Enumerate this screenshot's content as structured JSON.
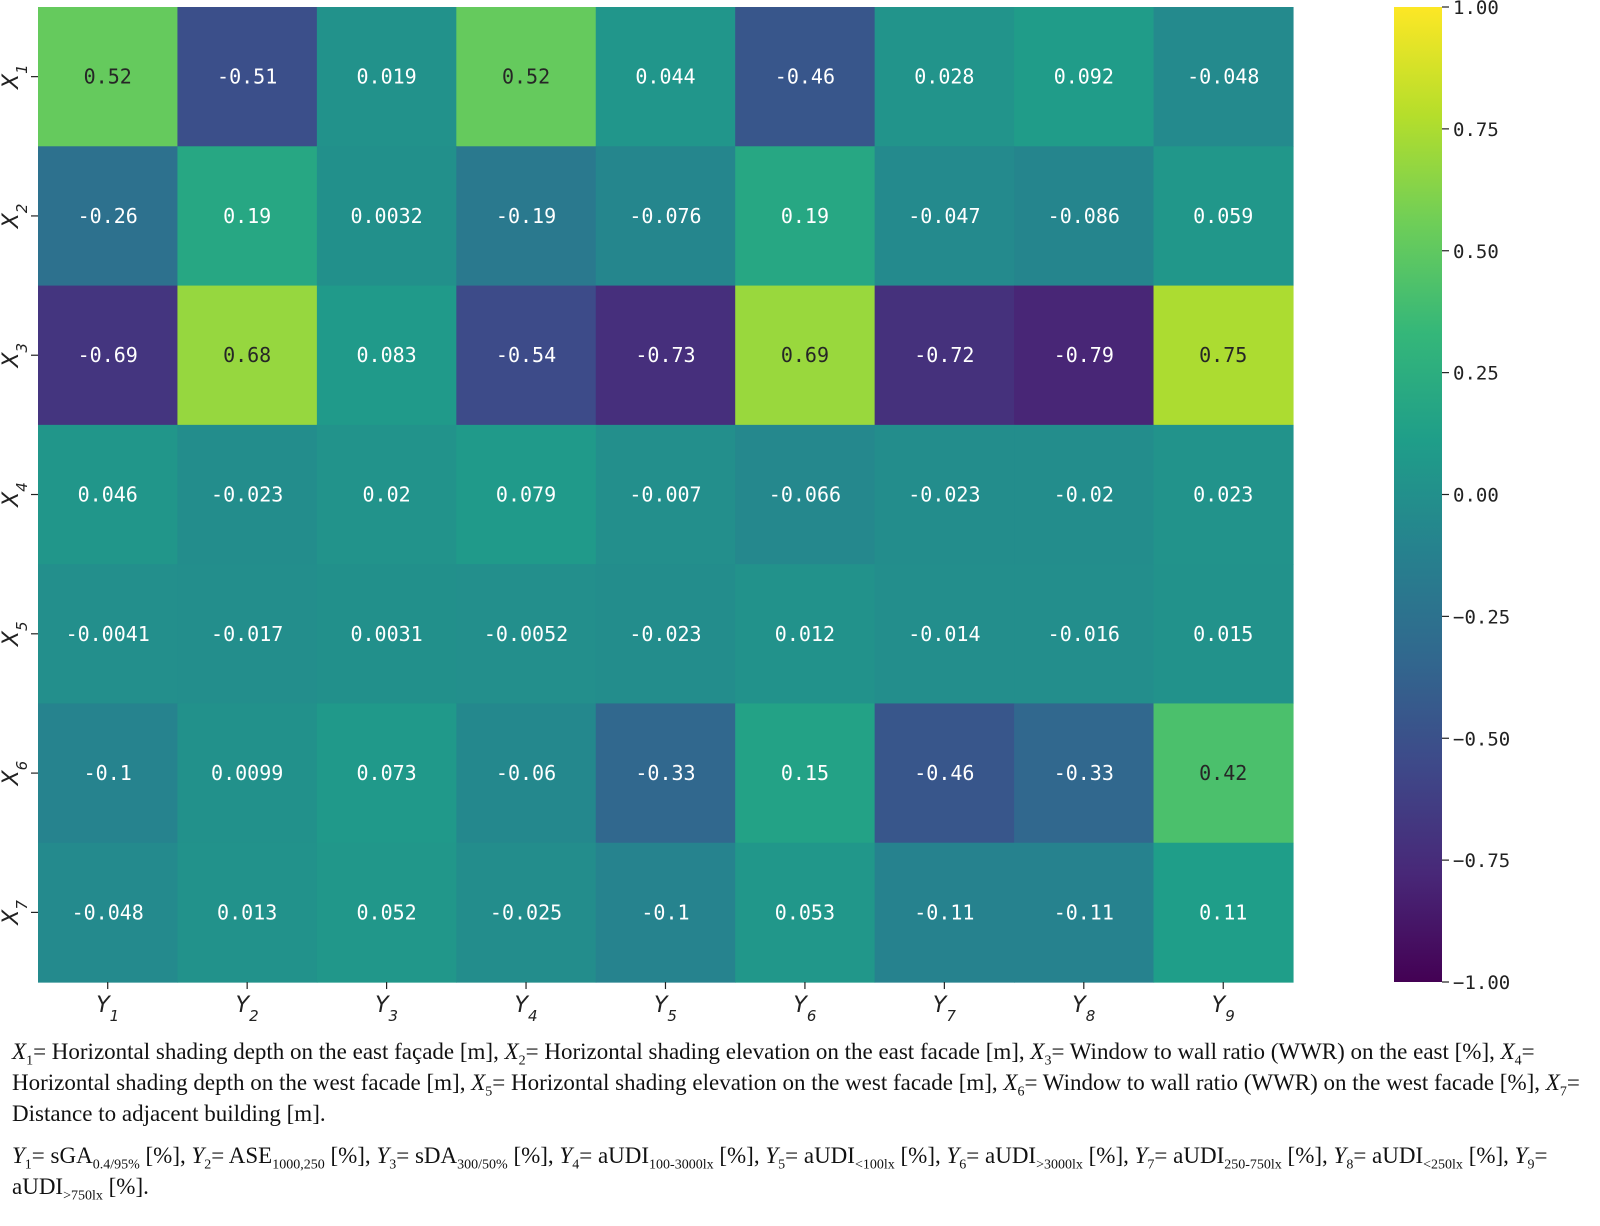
{
  "chart_data": {
    "type": "heatmap",
    "rows": [
      {
        "var": "X",
        "sub": "1"
      },
      {
        "var": "X",
        "sub": "2"
      },
      {
        "var": "X",
        "sub": "3"
      },
      {
        "var": "X",
        "sub": "4"
      },
      {
        "var": "X",
        "sub": "5"
      },
      {
        "var": "X",
        "sub": "6"
      },
      {
        "var": "X",
        "sub": "7"
      }
    ],
    "columns": [
      {
        "var": "Y",
        "sub": "1"
      },
      {
        "var": "Y",
        "sub": "2"
      },
      {
        "var": "Y",
        "sub": "3"
      },
      {
        "var": "Y",
        "sub": "4"
      },
      {
        "var": "Y",
        "sub": "5"
      },
      {
        "var": "Y",
        "sub": "6"
      },
      {
        "var": "Y",
        "sub": "7"
      },
      {
        "var": "Y",
        "sub": "8"
      },
      {
        "var": "Y",
        "sub": "9"
      }
    ],
    "values": [
      [
        0.52,
        -0.51,
        0.019,
        0.52,
        0.044,
        -0.46,
        0.028,
        0.092,
        -0.048
      ],
      [
        -0.26,
        0.19,
        0.0032,
        -0.19,
        -0.076,
        0.19,
        -0.047,
        -0.086,
        0.059
      ],
      [
        -0.69,
        0.68,
        0.083,
        -0.54,
        -0.73,
        0.69,
        -0.72,
        -0.79,
        0.75
      ],
      [
        0.046,
        -0.023,
        0.02,
        0.079,
        -0.007,
        -0.066,
        -0.023,
        -0.02,
        0.023
      ],
      [
        -0.0041,
        -0.017,
        0.0031,
        -0.0052,
        -0.023,
        0.012,
        -0.014,
        -0.016,
        0.015
      ],
      [
        -0.1,
        0.0099,
        0.073,
        -0.06,
        -0.33,
        0.15,
        -0.46,
        -0.33,
        0.42
      ],
      [
        -0.048,
        0.013,
        0.052,
        -0.025,
        -0.1,
        0.053,
        -0.11,
        -0.11,
        0.11
      ]
    ],
    "value_labels": [
      [
        "0.52",
        "-0.51",
        "0.019",
        "0.52",
        "0.044",
        "-0.46",
        "0.028",
        "0.092",
        "-0.048"
      ],
      [
        "-0.26",
        "0.19",
        "0.0032",
        "-0.19",
        "-0.076",
        "0.19",
        "-0.047",
        "-0.086",
        "0.059"
      ],
      [
        "-0.69",
        "0.68",
        "0.083",
        "-0.54",
        "-0.73",
        "0.69",
        "-0.72",
        "-0.79",
        "0.75"
      ],
      [
        "0.046",
        "-0.023",
        "0.02",
        "0.079",
        "-0.007",
        "-0.066",
        "-0.023",
        "-0.02",
        "0.023"
      ],
      [
        "-0.0041",
        "-0.017",
        "0.0031",
        "-0.0052",
        "-0.023",
        "0.012",
        "-0.014",
        "-0.016",
        "0.015"
      ],
      [
        "-0.1",
        "0.0099",
        "0.073",
        "-0.06",
        "-0.33",
        "0.15",
        "-0.46",
        "-0.33",
        "0.42"
      ],
      [
        "-0.048",
        "0.013",
        "0.052",
        "-0.025",
        "-0.1",
        "0.053",
        "-0.11",
        "-0.11",
        "0.11"
      ]
    ],
    "colormap": "viridis",
    "vmin": -1,
    "vmax": 1,
    "colorbar_ticks": [
      1.0,
      0.75,
      0.5,
      0.25,
      0.0,
      -0.25,
      -0.5,
      -0.75,
      -1.0
    ],
    "colorbar_tick_labels": [
      "1.00",
      "0.75",
      "0.50",
      "0.25",
      "0.00",
      "−0.25",
      "−0.50",
      "−0.75",
      "−1.00"
    ],
    "colorbar_placement": "right"
  },
  "captions": {
    "x_defs": [
      {
        "var": "X",
        "sub": "1",
        "text": "= Horizontal shading depth on the east façade [m], "
      },
      {
        "var": "X",
        "sub": "2",
        "text": "= Horizontal shading elevation on the east facade [m], "
      },
      {
        "var": "X",
        "sub": "3",
        "text": "= Window to wall ratio (WWR) on the east [%], "
      },
      {
        "var": "X",
        "sub": "4",
        "text": "= Horizontal shading depth on the west facade [m], "
      },
      {
        "var": "X",
        "sub": "5",
        "text": "= Horizontal shading elevation on the west facade [m], "
      },
      {
        "var": "X",
        "sub": "6",
        "text": "= Window to wall ratio (WWR) on the west facade [%], "
      },
      {
        "var": "X",
        "sub": "7",
        "text": "= Distance to adjacent building [m]."
      }
    ],
    "y_defs": [
      {
        "var": "Y",
        "sub": "1",
        "pre": "= sGA",
        "metric_sub": "0.4/95%",
        "post": " [%], "
      },
      {
        "var": "Y",
        "sub": "2",
        "pre": "= ASE",
        "metric_sub": "1000,250",
        "post": " [%], "
      },
      {
        "var": "Y",
        "sub": "3",
        "pre": "= sDA",
        "metric_sub": "300/50%",
        "post": " [%], "
      },
      {
        "var": "Y",
        "sub": "4",
        "pre": "= aUDI",
        "metric_sub": "100-3000lx",
        "post": " [%], "
      },
      {
        "var": "Y",
        "sub": "5",
        "pre": "= aUDI",
        "metric_sub": "<100lx",
        "post": "  [%], "
      },
      {
        "var": "Y",
        "sub": "6",
        "pre": "= aUDI",
        "metric_sub": ">3000lx",
        "post": " [%], "
      },
      {
        "var": "Y",
        "sub": "7",
        "pre": "= aUDI",
        "metric_sub": "250-750lx",
        "post": " [%], "
      },
      {
        "var": "Y",
        "sub": "8",
        "pre": "= aUDI",
        "metric_sub": "<250lx",
        "post": "  [%], "
      },
      {
        "var": "Y",
        "sub": "9",
        "pre": "= aUDI",
        "metric_sub": ">750lx",
        "post": "  [%]."
      }
    ]
  }
}
